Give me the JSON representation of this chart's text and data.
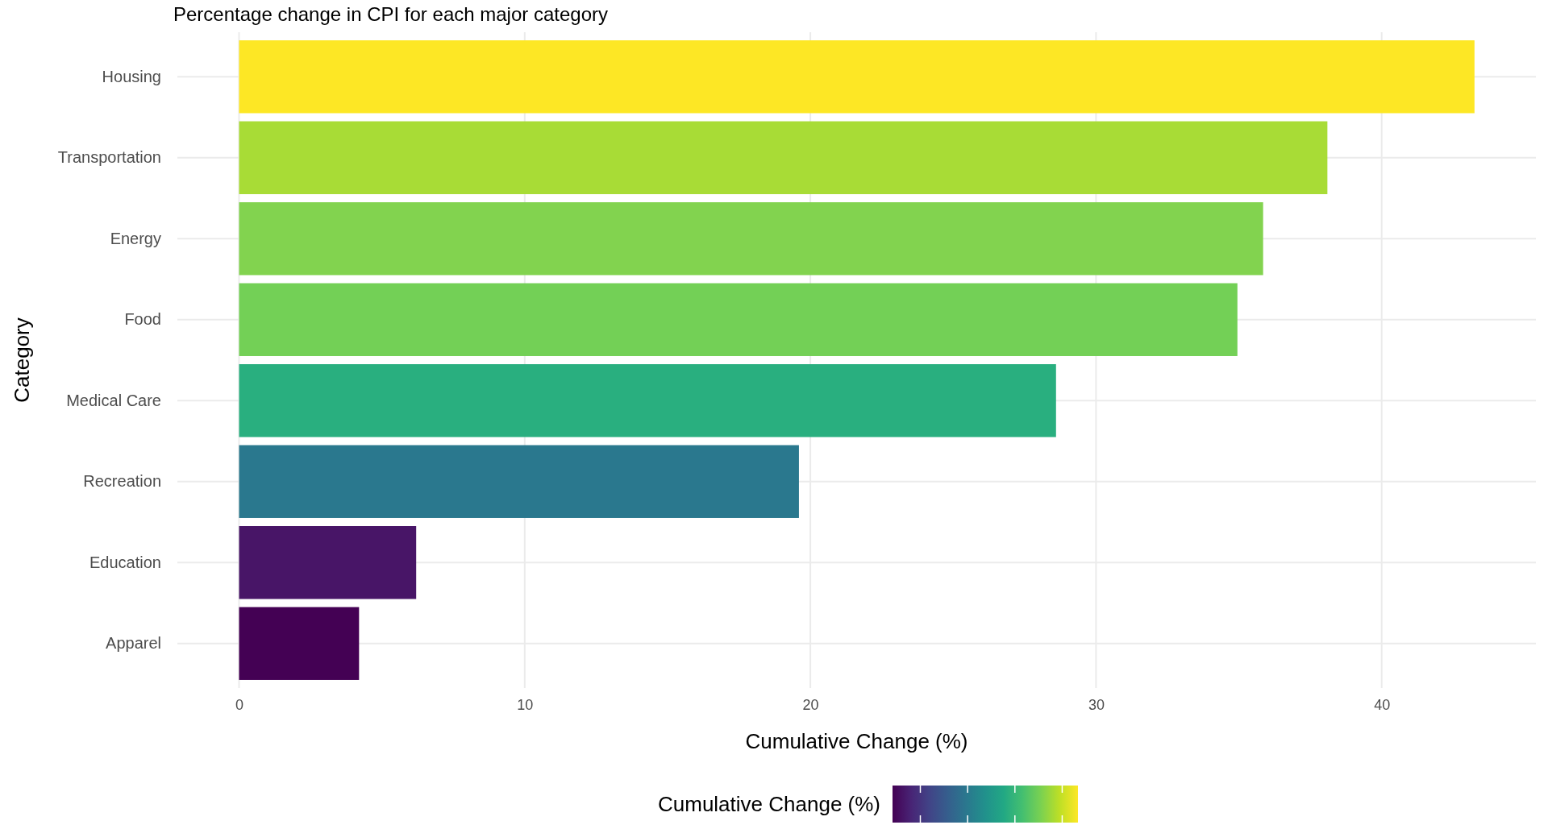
{
  "chart_data": {
    "type": "bar",
    "orientation": "horizontal",
    "title": "Percentage change in CPI for each major category",
    "xlabel": "Cumulative Change (%)",
    "ylabel": "Category",
    "categories": [
      "Housing",
      "Transportation",
      "Energy",
      "Food",
      "Medical Care",
      "Recreation",
      "Education",
      "Apparel"
    ],
    "values": [
      43.25,
      38.1,
      35.85,
      34.95,
      28.6,
      19.6,
      6.2,
      4.2
    ],
    "colors": [
      "#fde725",
      "#a8dc36",
      "#82d34f",
      "#73d056",
      "#29af7f",
      "#2a788e",
      "#481567",
      "#440154"
    ],
    "xlim": [
      -2.16,
      45.4
    ],
    "xticks": [
      0,
      10,
      20,
      30,
      40
    ],
    "grid": true,
    "clabel": "Cumulative Change (%)"
  }
}
